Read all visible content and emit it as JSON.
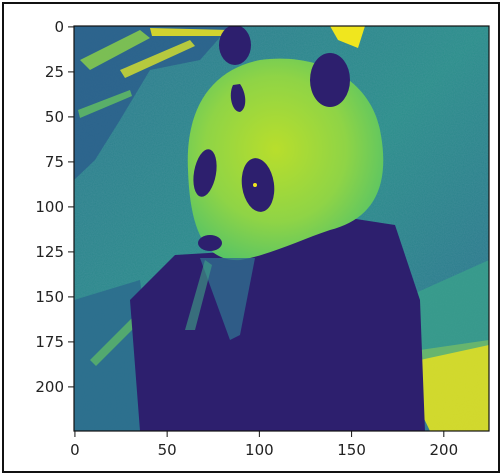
{
  "chart_data": {
    "type": "heatmap",
    "title": "",
    "xlabel": "",
    "ylabel": "",
    "colormap": "viridis",
    "colors": {
      "low": "#30207a",
      "mid_low": "#2c6a8c",
      "mid": "#2a9a86",
      "mid_high": "#68cf5c",
      "high": "#f0e61e"
    },
    "image_width": 225,
    "image_height": 225,
    "xlim": [
      0,
      224
    ],
    "ylim": [
      224,
      0
    ],
    "x_ticks": [
      0,
      50,
      100,
      150,
      200
    ],
    "y_ticks": [
      0,
      25,
      50,
      75,
      100,
      125,
      150,
      175,
      200
    ],
    "x_tick_labels": [
      "0",
      "50",
      "100",
      "150",
      "200"
    ],
    "y_tick_labels": [
      "0",
      "25",
      "50",
      "75",
      "100",
      "125",
      "150",
      "175",
      "200"
    ],
    "subject": "panda"
  }
}
